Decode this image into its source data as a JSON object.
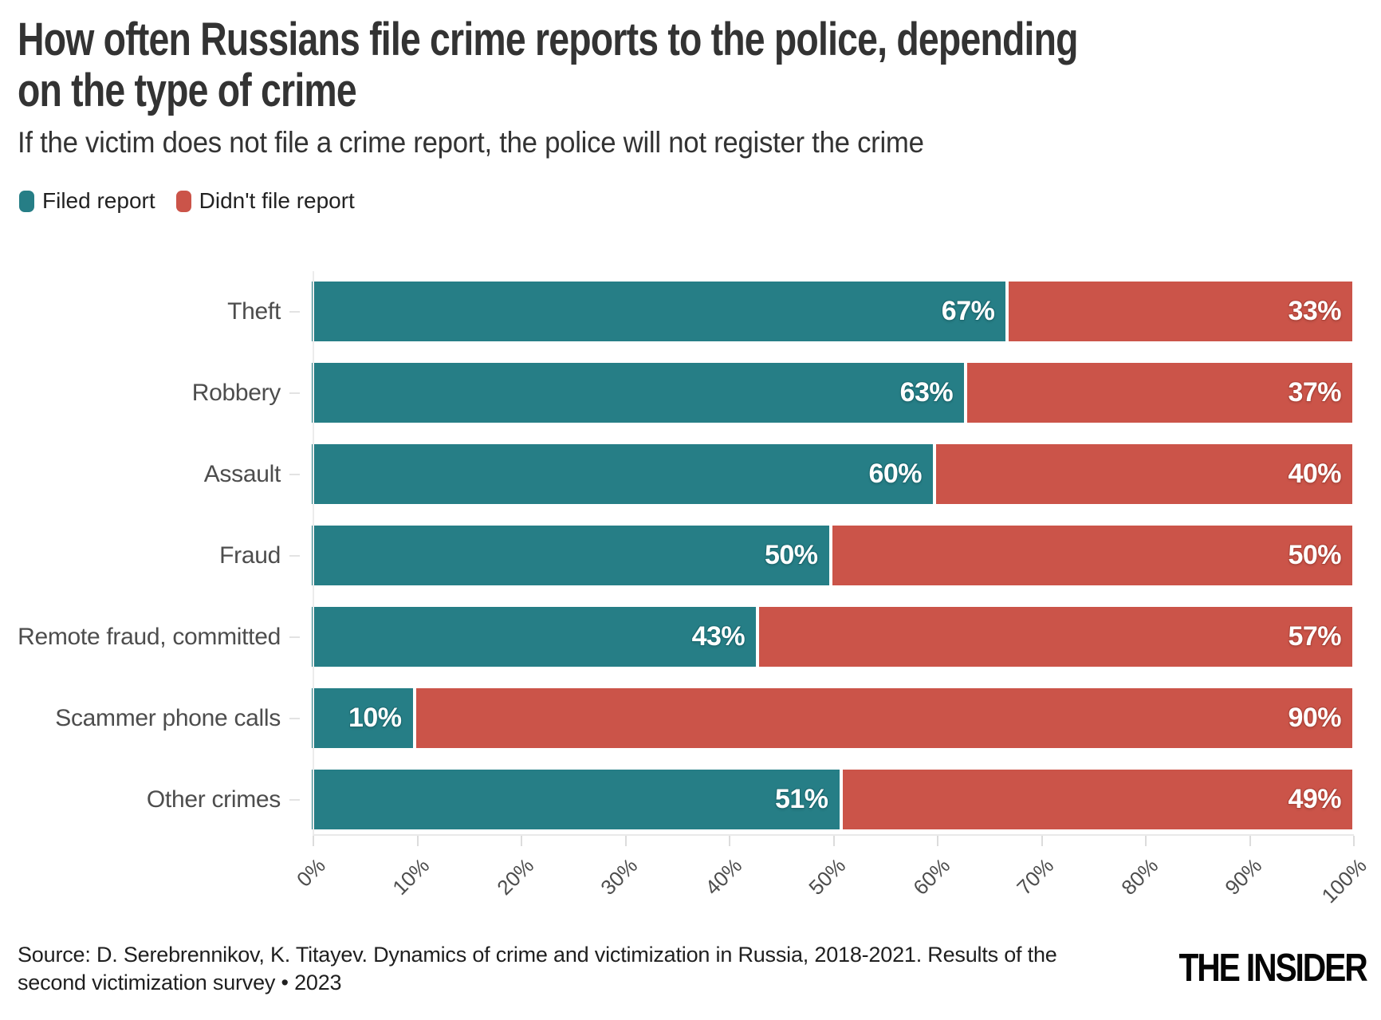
{
  "header": {
    "title": "How often Russians file crime reports to the police, depending on the type of crime",
    "subtitle": "If the victim does not file a crime report, the police will not register the crime"
  },
  "legend": [
    {
      "label": "Filed report",
      "color": "#267E86"
    },
    {
      "label": "Didn't file report",
      "color": "#CB5449"
    }
  ],
  "chart_data": {
    "type": "bar",
    "orientation": "horizontal",
    "stacked": true,
    "grid": false,
    "legend_position": "top-left",
    "categories": [
      "Theft",
      "Robbery",
      "Assault",
      "Fraud",
      "Remote fraud, committed",
      "Scammer phone calls",
      "Other crimes"
    ],
    "series": [
      {
        "name": "Filed report",
        "color": "#267E86",
        "values": [
          67,
          63,
          60,
          50,
          43,
          10,
          51
        ]
      },
      {
        "name": "Didn't file report",
        "color": "#CB5449",
        "values": [
          33,
          37,
          40,
          50,
          57,
          90,
          49
        ]
      }
    ],
    "value_label_format": "{v}%",
    "xlim": [
      0,
      100
    ],
    "x_ticks": [
      "0%",
      "10%",
      "20%",
      "30%",
      "40%",
      "50%",
      "60%",
      "70%",
      "80%",
      "90%",
      "100%"
    ]
  },
  "footer": {
    "source": "Source: D. Serebrennikov, K. Titayev. Dynamics of crime and victimization in Russia, 2018-2021. Results of the second victimization survey • 2023",
    "logo": "THE INSIDER"
  }
}
